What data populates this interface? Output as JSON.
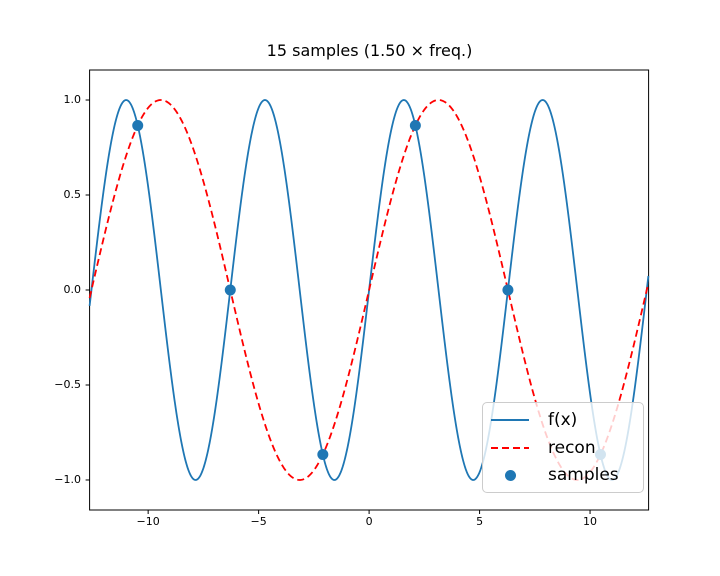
{
  "chart_data": {
    "type": "line",
    "title": "15 samples (1.50 × freq.)",
    "xlabel": "",
    "ylabel": "",
    "xlim": [
      -12.65,
      12.65
    ],
    "ylim": [
      -1.158,
      1.158
    ],
    "grid": false,
    "x_ticks": {
      "values": [
        -10,
        -5,
        0,
        5,
        10
      ],
      "labels": [
        "−10",
        "−5",
        "0",
        "5",
        "10"
      ]
    },
    "y_ticks": {
      "values": [
        1.0,
        0.5,
        0.0,
        -0.5,
        -1.0
      ],
      "labels": [
        "1.0",
        "0.5",
        "0.0",
        "−0.5",
        "−1.0"
      ]
    },
    "series": [
      {
        "name": "f(x)",
        "kind": "line",
        "linestyle": "solid",
        "color": "#1f77b4",
        "linewidth": 1.8,
        "function": "sine",
        "amplitude": 1.0,
        "omega": 1.0,
        "phase": 0.0
      },
      {
        "name": "recon",
        "kind": "line",
        "linestyle": "dashed",
        "color": "#ff0000",
        "linewidth": 1.8,
        "dash": [
          7,
          4
        ],
        "function": "sine",
        "amplitude": 1.0,
        "omega": 0.5,
        "phase": 0.0
      },
      {
        "name": "samples",
        "kind": "scatter",
        "color": "#1f77b4",
        "marker_radius": 5.5,
        "points": [
          {
            "x": -10.472,
            "y": 0.866
          },
          {
            "x": -6.283,
            "y": 0.0
          },
          {
            "x": -2.094,
            "y": -0.866
          },
          {
            "x": 2.094,
            "y": 0.866
          },
          {
            "x": 6.283,
            "y": 0.0
          },
          {
            "x": 10.472,
            "y": -0.866
          }
        ]
      }
    ],
    "legend": {
      "position": "lower-right",
      "entries": [
        "f(x)",
        "recon",
        "samples"
      ]
    },
    "axes": {
      "spine_color": "#000000",
      "tick_color": "#000000",
      "background": "#ffffff"
    }
  }
}
